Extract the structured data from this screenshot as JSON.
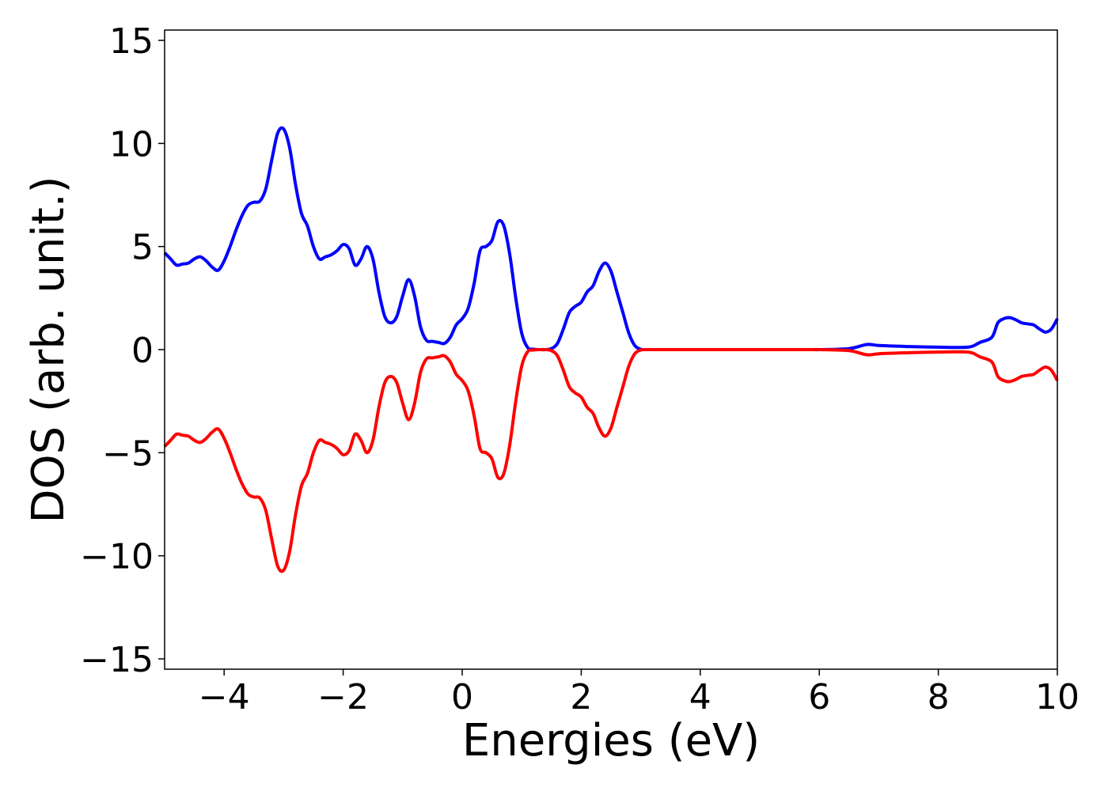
{
  "chart_data": {
    "type": "line",
    "title": "",
    "xlabel": "Energies (eV)",
    "ylabel": "DOS (arb. unit.)",
    "xlim": [
      -5,
      10
    ],
    "ylim": [
      -15.5,
      15.5
    ],
    "xticks": [
      -4,
      -2,
      0,
      2,
      4,
      6,
      8,
      10
    ],
    "xtick_labels": [
      "−4",
      "−2",
      "0",
      "2",
      "4",
      "6",
      "8",
      "10"
    ],
    "yticks": [
      -15,
      -10,
      -5,
      0,
      5,
      10,
      15
    ],
    "ytick_labels": [
      "−15",
      "−10",
      "−5",
      "0",
      "5",
      "10",
      "15"
    ],
    "grid": false,
    "legend": "none",
    "colors": {
      "spin_up": "#0000ff",
      "spin_down": "#ff0000",
      "axes": "#000000",
      "background": "#ffffff"
    },
    "x": [
      -5.0,
      -4.9,
      -4.8,
      -4.7,
      -4.6,
      -4.5,
      -4.4,
      -4.3,
      -4.2,
      -4.1,
      -4.0,
      -3.9,
      -3.8,
      -3.7,
      -3.6,
      -3.5,
      -3.4,
      -3.3,
      -3.2,
      -3.1,
      -3.0,
      -2.9,
      -2.8,
      -2.7,
      -2.6,
      -2.5,
      -2.4,
      -2.3,
      -2.2,
      -2.1,
      -2.0,
      -1.9,
      -1.8,
      -1.7,
      -1.6,
      -1.5,
      -1.4,
      -1.3,
      -1.2,
      -1.1,
      -1.0,
      -0.9,
      -0.8,
      -0.7,
      -0.6,
      -0.5,
      -0.4,
      -0.3,
      -0.2,
      -0.1,
      0.0,
      0.1,
      0.2,
      0.3,
      0.4,
      0.5,
      0.6,
      0.7,
      0.8,
      0.9,
      1.0,
      1.1,
      1.2,
      1.3,
      1.4,
      1.5,
      1.6,
      1.7,
      1.8,
      1.9,
      2.0,
      2.1,
      2.2,
      2.3,
      2.4,
      2.5,
      2.6,
      2.7,
      2.8,
      2.9,
      3.0,
      3.1,
      3.2,
      3.3,
      3.4,
      3.5,
      3.6,
      3.7,
      3.8,
      3.9,
      4.0,
      4.1,
      4.2,
      4.3,
      4.4,
      4.5,
      4.6,
      4.7,
      4.8,
      4.9,
      5.0,
      5.1,
      5.2,
      5.3,
      5.4,
      5.5,
      5.6,
      5.7,
      5.8,
      5.9,
      6.0,
      6.5,
      6.8,
      7.0,
      7.5,
      8.0,
      8.5,
      8.7,
      8.9,
      9.0,
      9.1,
      9.2,
      9.3,
      9.4,
      9.5,
      9.6,
      9.7,
      9.8,
      9.9,
      10.0
    ],
    "series": [
      {
        "name": "",
        "color": "#0000ff",
        "values": [
          4.7,
          4.4,
          4.1,
          4.15,
          4.2,
          4.4,
          4.5,
          4.3,
          4.0,
          3.85,
          4.3,
          5.0,
          5.8,
          6.5,
          7.0,
          7.15,
          7.2,
          7.8,
          9.2,
          10.5,
          10.7,
          9.8,
          8.0,
          6.6,
          6.0,
          5.0,
          4.4,
          4.5,
          4.6,
          4.8,
          5.1,
          4.9,
          4.1,
          4.4,
          5.0,
          4.4,
          2.8,
          1.6,
          1.3,
          1.6,
          2.6,
          3.4,
          2.6,
          1.1,
          0.45,
          0.4,
          0.35,
          0.3,
          0.6,
          1.2,
          1.5,
          2.0,
          3.2,
          4.8,
          5.0,
          5.3,
          6.2,
          6.0,
          4.6,
          2.5,
          0.8,
          0.1,
          0.02,
          0.0,
          0.0,
          0.05,
          0.3,
          1.0,
          1.8,
          2.1,
          2.3,
          2.8,
          3.1,
          3.8,
          4.2,
          3.8,
          2.8,
          1.8,
          0.8,
          0.2,
          0.02,
          0.0,
          0.0,
          0.0,
          0.0,
          0.0,
          0.0,
          0.0,
          0.0,
          0.0,
          0.0,
          0.0,
          0.0,
          0.0,
          0.0,
          0.0,
          0.0,
          0.0,
          0.0,
          0.0,
          0.0,
          0.0,
          0.0,
          0.0,
          0.0,
          0.0,
          0.0,
          0.0,
          0.0,
          0.0,
          0.0,
          0.05,
          0.25,
          0.2,
          0.15,
          0.12,
          0.12,
          0.35,
          0.6,
          1.3,
          1.5,
          1.55,
          1.45,
          1.3,
          1.25,
          1.2,
          1.0,
          0.85,
          1.0,
          1.5
        ]
      },
      {
        "name": "",
        "color": "#ff0000",
        "values": [
          -4.7,
          -4.4,
          -4.1,
          -4.15,
          -4.2,
          -4.4,
          -4.5,
          -4.3,
          -4.0,
          -3.85,
          -4.3,
          -5.0,
          -5.8,
          -6.5,
          -7.0,
          -7.15,
          -7.2,
          -7.8,
          -9.2,
          -10.5,
          -10.7,
          -9.8,
          -8.0,
          -6.6,
          -6.0,
          -5.0,
          -4.4,
          -4.5,
          -4.6,
          -4.8,
          -5.1,
          -4.9,
          -4.1,
          -4.4,
          -5.0,
          -4.4,
          -2.8,
          -1.6,
          -1.3,
          -1.6,
          -2.6,
          -3.4,
          -2.6,
          -1.1,
          -0.45,
          -0.4,
          -0.35,
          -0.3,
          -0.6,
          -1.2,
          -1.5,
          -2.0,
          -3.2,
          -4.8,
          -5.0,
          -5.3,
          -6.2,
          -6.0,
          -4.6,
          -2.5,
          -0.8,
          -0.1,
          -0.02,
          0.0,
          0.0,
          -0.05,
          -0.3,
          -1.0,
          -1.8,
          -2.1,
          -2.3,
          -2.8,
          -3.1,
          -3.8,
          -4.2,
          -3.8,
          -2.8,
          -1.8,
          -0.8,
          -0.2,
          -0.02,
          0.0,
          0.0,
          0.0,
          0.0,
          0.0,
          0.0,
          0.0,
          0.0,
          0.0,
          0.0,
          0.0,
          0.0,
          0.0,
          0.0,
          0.0,
          0.0,
          0.0,
          0.0,
          0.0,
          0.0,
          0.0,
          0.0,
          0.0,
          0.0,
          0.0,
          0.0,
          0.0,
          0.0,
          0.0,
          0.0,
          -0.05,
          -0.25,
          -0.2,
          -0.15,
          -0.12,
          -0.12,
          -0.35,
          -0.6,
          -1.3,
          -1.5,
          -1.55,
          -1.45,
          -1.3,
          -1.25,
          -1.2,
          -1.0,
          -0.85,
          -1.0,
          -1.5
        ]
      }
    ]
  }
}
